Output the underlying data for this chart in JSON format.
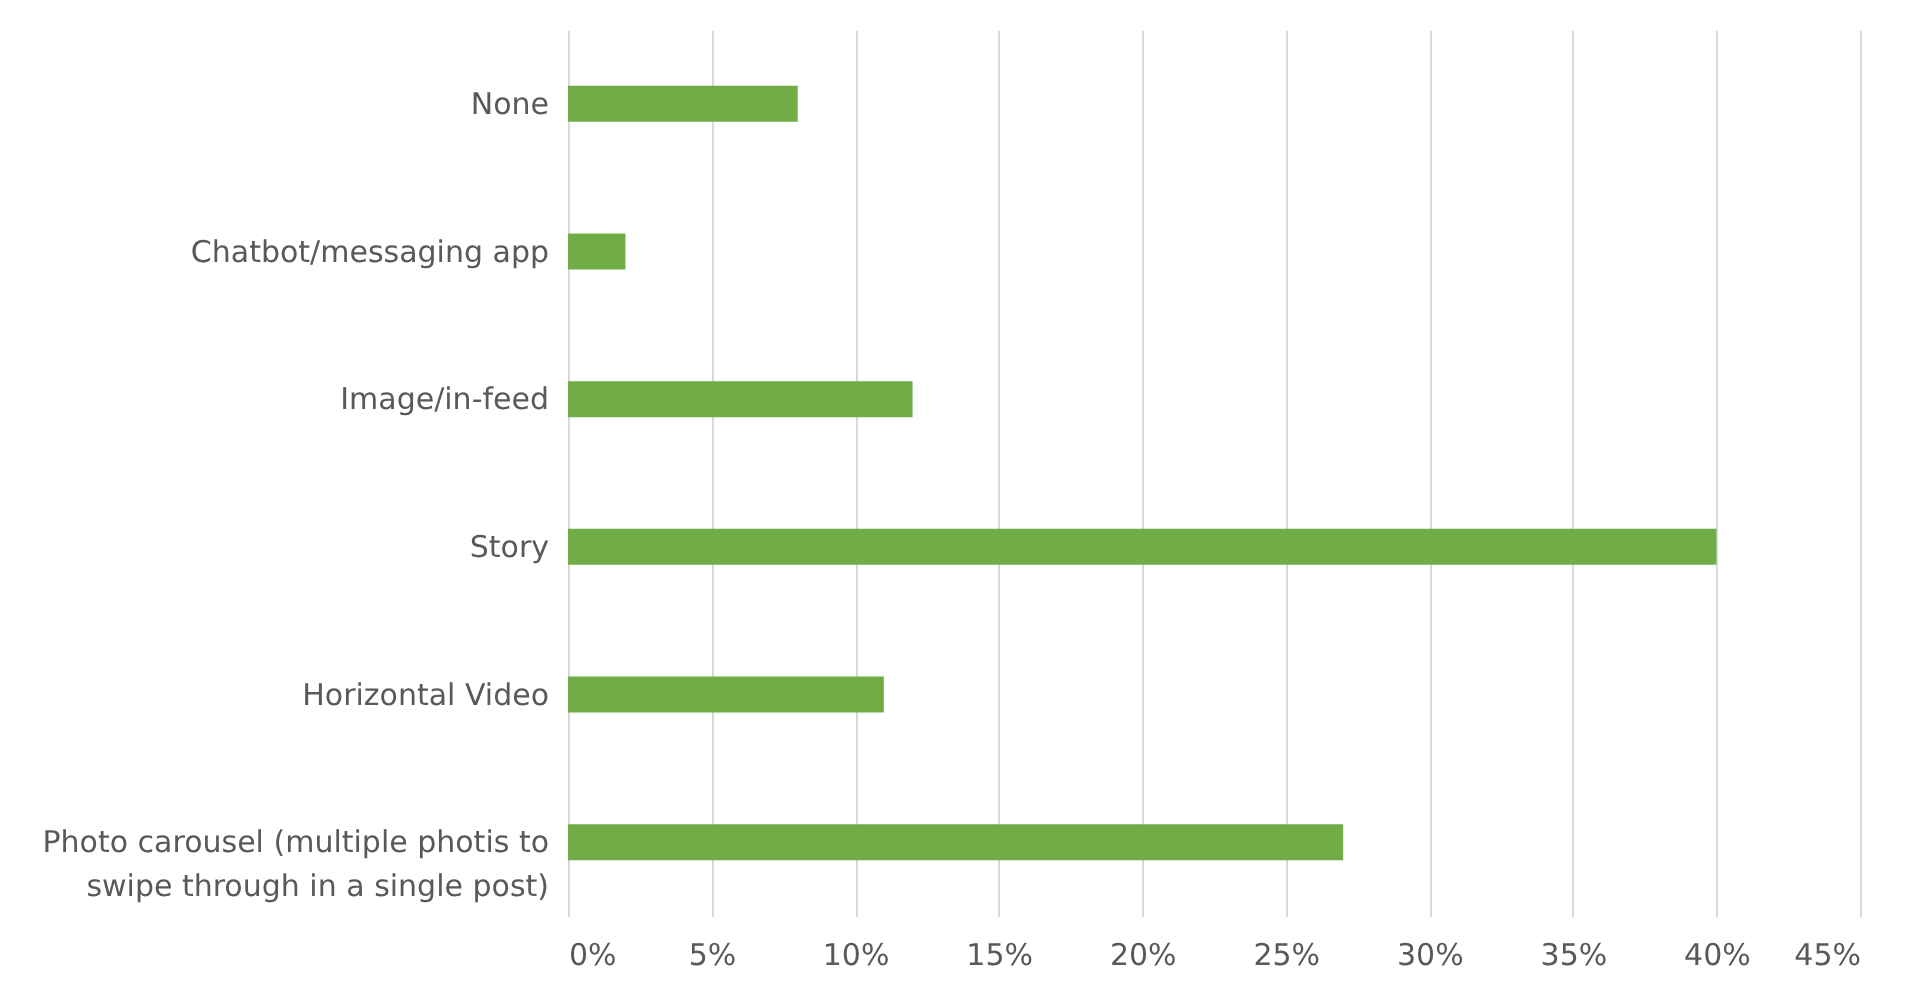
{
  "chart_data": {
    "type": "bar",
    "orientation": "horizontal",
    "categories": [
      "None",
      "Chatbot/messaging app",
      "Image/in-feed",
      "Story",
      "Horizontal Video",
      "Photo carousel (multiple photis to swipe through in a single post)"
    ],
    "values": [
      8,
      2,
      12,
      40,
      11,
      27
    ],
    "color": "#70ad47",
    "xlim": [
      0,
      45
    ],
    "xticks": [
      {
        "value": 0,
        "label": "0%"
      },
      {
        "value": 5,
        "label": "5%"
      },
      {
        "value": 10,
        "label": "10%"
      },
      {
        "value": 15,
        "label": "15%"
      },
      {
        "value": 20,
        "label": "20%"
      },
      {
        "value": 25,
        "label": "25%"
      },
      {
        "value": 30,
        "label": "30%"
      },
      {
        "value": 35,
        "label": "35%"
      },
      {
        "value": 40,
        "label": "40%"
      },
      {
        "value": 45,
        "label": "45%"
      }
    ],
    "grid": "x"
  }
}
